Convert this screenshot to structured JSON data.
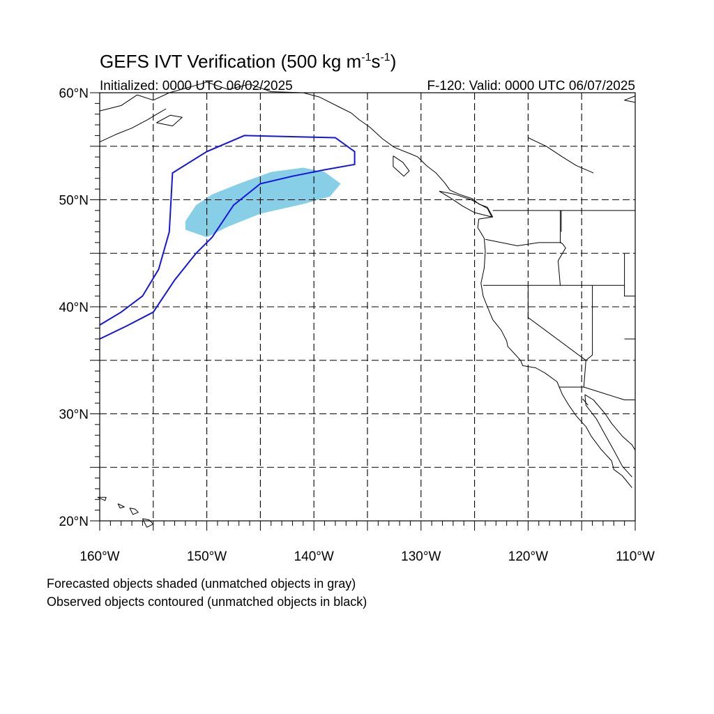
{
  "title": {
    "main": "GEFS IVT Verification (500 kg m",
    "sup1": "-1",
    "mid": "s",
    "sup2": "-1",
    "end": ")"
  },
  "subtitle_left": "Initialized: 0000 UTC 06/02/2025",
  "subtitle_right": "F-120: Valid: 0000 UTC 06/07/2025",
  "map": {
    "lon_range": [
      -160,
      -110
    ],
    "lat_range": [
      20,
      60
    ],
    "lon_labels": [
      "160°W",
      "150°W",
      "140°W",
      "130°W",
      "120°W",
      "110°W"
    ],
    "lat_labels": [
      "60°N",
      "50°N",
      "40°N",
      "30°N",
      "20°N"
    ],
    "grid_dashed": true,
    "forecast_color": "#87cfe6",
    "observed_color": "#1414e6",
    "forecast_object_lonlat": [
      [
        -152,
        48
      ],
      [
        -151,
        49.5
      ],
      [
        -149.5,
        50.5
      ],
      [
        -147,
        51.5
      ],
      [
        -144,
        52.6
      ],
      [
        -141,
        53
      ],
      [
        -139,
        52.6
      ],
      [
        -137.5,
        51.5
      ],
      [
        -138.5,
        50.3
      ],
      [
        -141,
        49.6
      ],
      [
        -145,
        48.7
      ],
      [
        -148,
        47.5
      ],
      [
        -150,
        46.5
      ],
      [
        -152,
        47.2
      ]
    ],
    "observed_object_lonlat": [
      [
        -160,
        38.3
      ],
      [
        -158,
        39.5
      ],
      [
        -156,
        41
      ],
      [
        -154.5,
        43.5
      ],
      [
        -153.5,
        47
      ],
      [
        -153.2,
        52.5
      ],
      [
        -150,
        54.5
      ],
      [
        -146.5,
        56
      ],
      [
        -138,
        55.8
      ],
      [
        -136.2,
        54.5
      ],
      [
        -136.2,
        53.3
      ],
      [
        -139,
        52.8
      ],
      [
        -142,
        52.2
      ],
      [
        -145,
        51.5
      ],
      [
        -147.5,
        49.5
      ],
      [
        -149.5,
        46.5
      ],
      [
        -151,
        45
      ],
      [
        -153,
        42.5
      ],
      [
        -155,
        39.5
      ],
      [
        -157.5,
        38.2
      ],
      [
        -160,
        37
      ]
    ]
  },
  "notes": [
    "Forecasted objects shaded (unmatched objects in gray)",
    "Observed objects contoured (unmatched objects in black)"
  ]
}
